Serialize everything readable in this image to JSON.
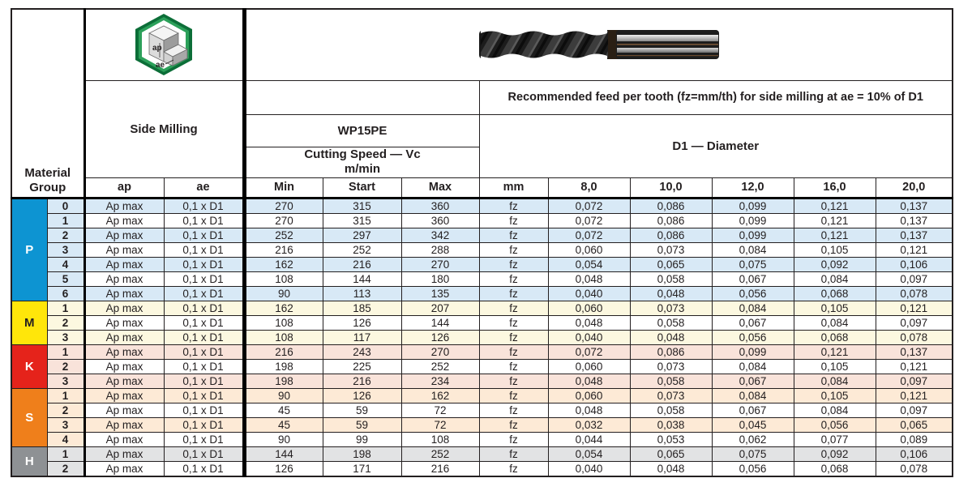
{
  "table": {
    "header": {
      "material_group_line1": "Material",
      "material_group_line2": "Group",
      "side_milling": "Side Milling",
      "grade": "WP15PE",
      "cutting_speed_line1": "Cutting Speed — Vc",
      "cutting_speed_line2": "m/min",
      "feed_note": "Recommended feed per tooth (fz=mm/th) for side milling at ae = 10% of D1",
      "diameter_title": "D1 — Diameter",
      "col_ap": "ap",
      "col_ae": "ae",
      "col_min": "Min",
      "col_start": "Start",
      "col_max": "Max",
      "col_mm": "mm",
      "diameter_cols": [
        "8,0",
        "10,0",
        "12,0",
        "16,0",
        "20,0"
      ]
    },
    "icon_labels": {
      "ap": "ap",
      "ae": "ae"
    },
    "row_constants": {
      "ap": "Ap max",
      "ae": "0,1 x D1",
      "fz": "fz"
    },
    "colors": {
      "text": "#231f20",
      "thick_line": "#000000",
      "p_blue": "#0d94d2",
      "m_yellow": "#ffe60a",
      "k_red": "#e5231b",
      "s_orange": "#ef7f1b",
      "h_gray": "#8e9194"
    },
    "groups": [
      {
        "code": "P",
        "color": "#0d94d2",
        "code_color": "#ffffff",
        "tint": "#d8e9f6",
        "rows": [
          {
            "no": "0",
            "vc": [
              "270",
              "315",
              "360"
            ],
            "fz": [
              "0,072",
              "0,086",
              "0,099",
              "0,121",
              "0,137"
            ]
          },
          {
            "no": "1",
            "vc": [
              "270",
              "315",
              "360"
            ],
            "fz": [
              "0,072",
              "0,086",
              "0,099",
              "0,121",
              "0,137"
            ]
          },
          {
            "no": "2",
            "vc": [
              "252",
              "297",
              "342"
            ],
            "fz": [
              "0,072",
              "0,086",
              "0,099",
              "0,121",
              "0,137"
            ]
          },
          {
            "no": "3",
            "vc": [
              "216",
              "252",
              "288"
            ],
            "fz": [
              "0,060",
              "0,073",
              "0,084",
              "0,105",
              "0,121"
            ]
          },
          {
            "no": "4",
            "vc": [
              "162",
              "216",
              "270"
            ],
            "fz": [
              "0,054",
              "0,065",
              "0,075",
              "0,092",
              "0,106"
            ]
          },
          {
            "no": "5",
            "vc": [
              "108",
              "144",
              "180"
            ],
            "fz": [
              "0,048",
              "0,058",
              "0,067",
              "0,084",
              "0,097"
            ]
          },
          {
            "no": "6",
            "vc": [
              "90",
              "113",
              "135"
            ],
            "fz": [
              "0,040",
              "0,048",
              "0,056",
              "0,068",
              "0,078"
            ]
          }
        ]
      },
      {
        "code": "M",
        "color": "#ffe60a",
        "code_color": "#231f20",
        "tint": "#fcf8e0",
        "rows": [
          {
            "no": "1",
            "vc": [
              "162",
              "185",
              "207"
            ],
            "fz": [
              "0,060",
              "0,073",
              "0,084",
              "0,105",
              "0,121"
            ]
          },
          {
            "no": "2",
            "vc": [
              "108",
              "126",
              "144"
            ],
            "fz": [
              "0,048",
              "0,058",
              "0,067",
              "0,084",
              "0,097"
            ]
          },
          {
            "no": "3",
            "vc": [
              "108",
              "117",
              "126"
            ],
            "fz": [
              "0,040",
              "0,048",
              "0,056",
              "0,068",
              "0,078"
            ]
          }
        ]
      },
      {
        "code": "K",
        "color": "#e5231b",
        "code_color": "#ffffff",
        "tint": "#f9e3da",
        "rows": [
          {
            "no": "1",
            "vc": [
              "216",
              "243",
              "270"
            ],
            "fz": [
              "0,072",
              "0,086",
              "0,099",
              "0,121",
              "0,137"
            ]
          },
          {
            "no": "2",
            "vc": [
              "198",
              "225",
              "252"
            ],
            "fz": [
              "0,060",
              "0,073",
              "0,084",
              "0,105",
              "0,121"
            ]
          },
          {
            "no": "3",
            "vc": [
              "198",
              "216",
              "234"
            ],
            "fz": [
              "0,048",
              "0,058",
              "0,067",
              "0,084",
              "0,097"
            ]
          }
        ]
      },
      {
        "code": "S",
        "color": "#ef7f1b",
        "code_color": "#ffffff",
        "tint": "#fdead6",
        "rows": [
          {
            "no": "1",
            "vc": [
              "90",
              "126",
              "162"
            ],
            "fz": [
              "0,060",
              "0,073",
              "0,084",
              "0,105",
              "0,121"
            ]
          },
          {
            "no": "2",
            "vc": [
              "45",
              "59",
              "72"
            ],
            "fz": [
              "0,048",
              "0,058",
              "0,067",
              "0,084",
              "0,097"
            ]
          },
          {
            "no": "3",
            "vc": [
              "45",
              "59",
              "72"
            ],
            "fz": [
              "0,032",
              "0,038",
              "0,045",
              "0,056",
              "0,065"
            ]
          },
          {
            "no": "4",
            "vc": [
              "90",
              "99",
              "108"
            ],
            "fz": [
              "0,044",
              "0,053",
              "0,062",
              "0,077",
              "0,089"
            ]
          }
        ]
      },
      {
        "code": "H",
        "color": "#8e9194",
        "code_color": "#ffffff",
        "tint": "#e2e3e4",
        "rows": [
          {
            "no": "1",
            "vc": [
              "144",
              "198",
              "252"
            ],
            "fz": [
              "0,054",
              "0,065",
              "0,075",
              "0,092",
              "0,106"
            ]
          },
          {
            "no": "2",
            "vc": [
              "126",
              "171",
              "216"
            ],
            "fz": [
              "0,040",
              "0,048",
              "0,056",
              "0,068",
              "0,078"
            ]
          }
        ]
      }
    ]
  }
}
